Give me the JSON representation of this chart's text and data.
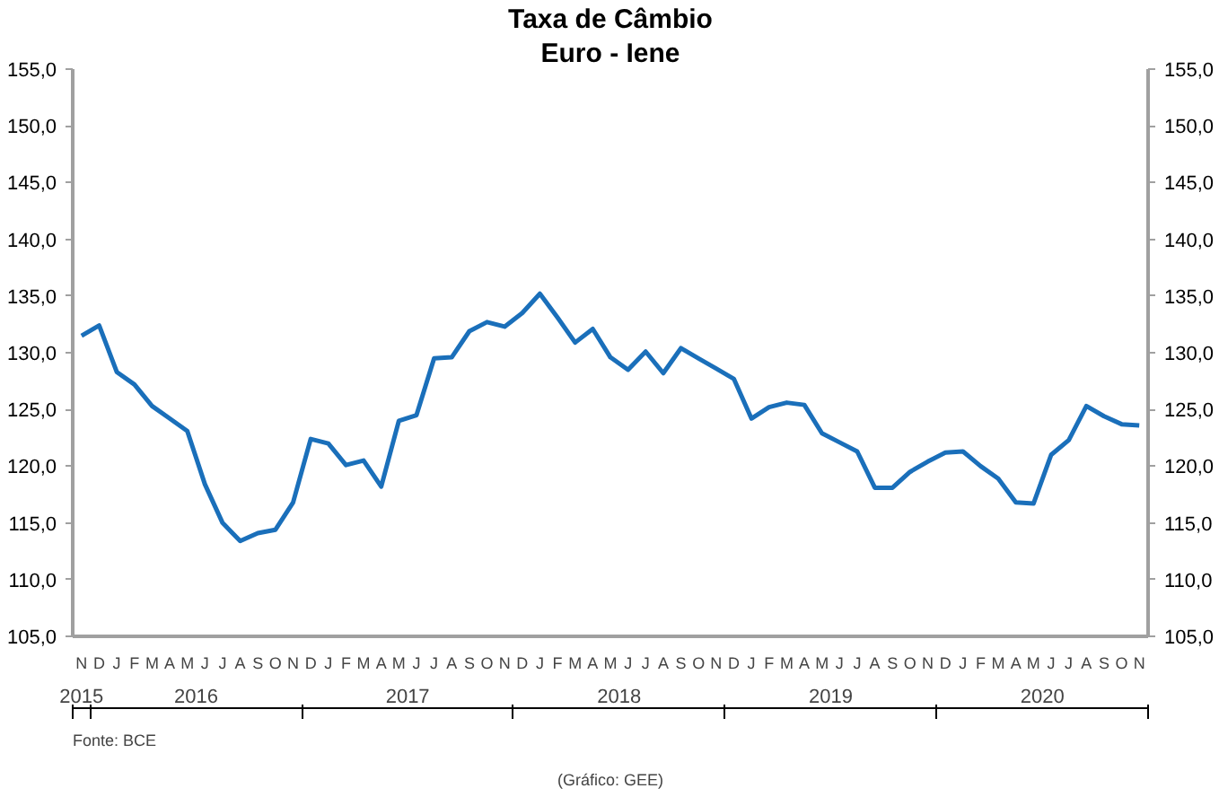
{
  "chart_data": {
    "type": "line",
    "title": "Taxa de Câmbio",
    "subtitle": "Euro - Iene",
    "categories": [
      "N",
      "D",
      "J",
      "F",
      "M",
      "A",
      "M",
      "J",
      "J",
      "A",
      "S",
      "O",
      "N",
      "D",
      "J",
      "F",
      "M",
      "A",
      "M",
      "J",
      "J",
      "A",
      "S",
      "O",
      "N",
      "D",
      "J",
      "F",
      "M",
      "A",
      "M",
      "J",
      "J",
      "A",
      "S",
      "O",
      "N",
      "D",
      "J",
      "F",
      "M",
      "A",
      "M",
      "J",
      "J",
      "A",
      "S",
      "O",
      "N",
      "D",
      "J",
      "F",
      "M",
      "A",
      "M",
      "J",
      "J",
      "A",
      "S",
      "O",
      "N"
    ],
    "series": [
      {
        "color": "#1a6fba",
        "values": [
          131.5,
          132.4,
          128.3,
          127.2,
          125.3,
          124.2,
          123.1,
          118.4,
          115.0,
          113.4,
          114.1,
          114.4,
          116.8,
          122.4,
          122.0,
          120.1,
          120.5,
          118.2,
          124.0,
          124.5,
          129.5,
          129.6,
          131.9,
          132.7,
          132.3,
          133.5,
          135.2,
          133.1,
          130.9,
          132.1,
          129.6,
          128.5,
          130.1,
          128.2,
          130.4,
          129.5,
          128.6,
          127.7,
          124.2,
          125.2,
          125.6,
          125.4,
          122.9,
          122.1,
          121.3,
          118.1,
          118.1,
          119.5,
          120.4,
          121.2,
          121.3,
          120.0,
          118.9,
          116.8,
          116.7,
          121.0,
          122.3,
          125.3,
          124.4,
          123.7,
          123.6
        ]
      }
    ],
    "ylim": [
      105,
      155
    ],
    "yticks": [
      {
        "value": 105,
        "label": "105,0"
      },
      {
        "value": 110,
        "label": "110,0"
      },
      {
        "value": 115,
        "label": "115,0"
      },
      {
        "value": 120,
        "label": "120,0"
      },
      {
        "value": 125,
        "label": "125,0"
      },
      {
        "value": 130,
        "label": "130,0"
      },
      {
        "value": 135,
        "label": "135,0"
      },
      {
        "value": 140,
        "label": "140,0"
      },
      {
        "value": 145,
        "label": "145,0"
      },
      {
        "value": 150,
        "label": "150,0"
      },
      {
        "value": 155,
        "label": "155,0"
      }
    ],
    "y2lim": [
      105,
      155
    ],
    "y2ticks": [
      {
        "value": 105,
        "label": "105,0"
      },
      {
        "value": 110,
        "label": "110,0"
      },
      {
        "value": 115,
        "label": "115,0"
      },
      {
        "value": 120,
        "label": "120,0"
      },
      {
        "value": 125,
        "label": "125,0"
      },
      {
        "value": 130,
        "label": "130,0"
      },
      {
        "value": 135,
        "label": "135,0"
      },
      {
        "value": 140,
        "label": "140,0"
      },
      {
        "value": 145,
        "label": "145,0"
      },
      {
        "value": 150,
        "label": "150,0"
      },
      {
        "value": 155,
        "label": "155,0"
      }
    ],
    "grid": false,
    "annotations": [
      "2015",
      "2016",
      "2017",
      "2018",
      "2019",
      "2020",
      "Fonte: BCE",
      "(Gráfico: GEE)"
    ]
  }
}
